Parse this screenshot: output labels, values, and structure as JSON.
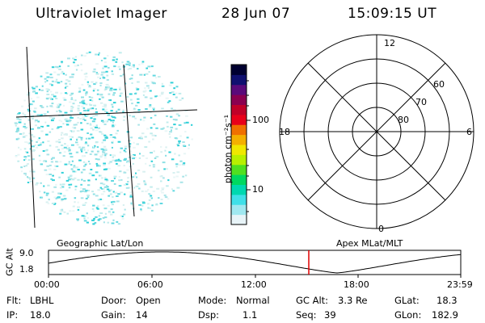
{
  "header": {
    "instrument": "Ultraviolet Imager",
    "date": "28 Jun 07",
    "time": "15:09:15 UT"
  },
  "colorbar": {
    "label": "photon cm⁻²s⁻¹",
    "ticks": [
      "100",
      "10"
    ],
    "colors": [
      "#000030",
      "#101070",
      "#5a0a7a",
      "#8a0050",
      "#c00028",
      "#e8001a",
      "#f07000",
      "#f4b000",
      "#f0e800",
      "#b8f000",
      "#50e020",
      "#00d860",
      "#00d8b0",
      "#40e0e8",
      "#a0e8f0",
      "#e8f4f8"
    ]
  },
  "polar_plot": {
    "mlt_labels": {
      "top": "12",
      "left": "18",
      "right": "6",
      "bottom": "0"
    },
    "lat_labels": [
      "60",
      "70",
      "80"
    ]
  },
  "timeline": {
    "left_label": "Geographic Lat/Lon",
    "right_label": "Apex MLat/MLT",
    "y_axis_title": "GC Alt",
    "y_ticks": [
      "9.0",
      "1.8"
    ],
    "x_ticks": [
      "00:00",
      "06:00",
      "12:00",
      "18:00",
      "23:59"
    ],
    "current_marker_color": "#e00000"
  },
  "info": {
    "flt_label": "Flt:",
    "flt_value": "LBHL",
    "ip_label": "IP:",
    "ip_value": "18.0",
    "door_label": "Door:",
    "door_value": "Open",
    "gain_label": "Gain:",
    "gain_value": "14",
    "mode_label": "Mode:",
    "mode_value": "Normal",
    "dsp_label": "Dsp:",
    "dsp_value": "1.1",
    "gcalt_label": "GC Alt:",
    "gcalt_value": "3.3 Re",
    "seq_label": "Seq:",
    "seq_value": "39",
    "glat_label": "GLat:",
    "glat_value": "18.3",
    "glon_label": "GLon:",
    "glon_value": "182.9"
  }
}
